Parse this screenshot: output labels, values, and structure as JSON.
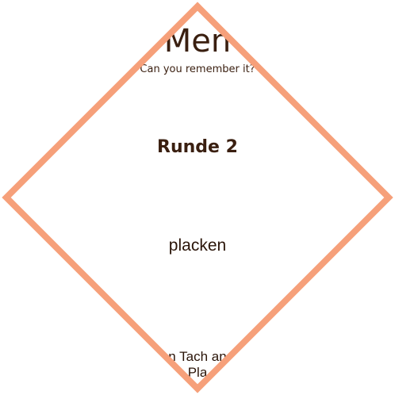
{
  "app": {
    "title": "Men",
    "subtitle": "Can you remember it?"
  },
  "game": {
    "round_label": "Runde 2",
    "current_word": "placken"
  },
  "footer": {
    "line1": "n Tach an",
    "line2": "Pla"
  },
  "colors": {
    "frame": "#f6a07a",
    "text": "#3a1f10"
  }
}
